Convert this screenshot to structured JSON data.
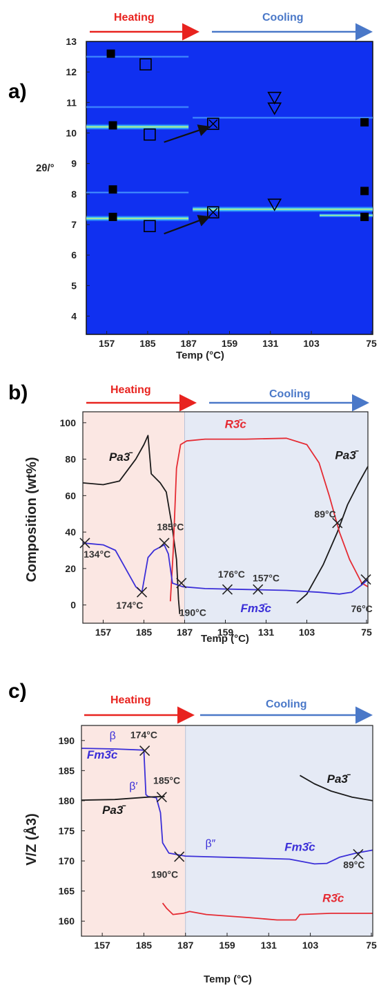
{
  "colors": {
    "heating": "#e8231f",
    "cooling": "#4a78c8",
    "heatmap_bg": "#1030f0",
    "fm3c": "#3b2fd8",
    "r3c": "#e52b33",
    "pa3": "#1a1a1a",
    "heating_fill": "#fbe7e3",
    "cooling_fill": "#e5eaf5"
  },
  "chart_data": [
    {
      "panel": "a)",
      "type": "heatmap",
      "ylabel": "2θ/°",
      "xlabel": "Temp (°C)",
      "heating_label": "Heating",
      "cooling_label": "Cooling",
      "x_ticks": [
        "157",
        "185",
        "187",
        "159",
        "131",
        "103",
        "75"
      ],
      "y_ticks": [
        "4",
        "5",
        "6",
        "7",
        "8",
        "9",
        "10",
        "11",
        "12",
        "13"
      ],
      "ylim": [
        3.4,
        13.0
      ],
      "x_domain": [
        0,
        7
      ],
      "bands": [
        {
          "y": 7.2,
          "x0": 0,
          "x1": 2.5,
          "strength": 3
        },
        {
          "y": 7.5,
          "x0": 2.6,
          "x1": 7,
          "strength": 3
        },
        {
          "y": 7.3,
          "x0": 5.7,
          "x1": 7,
          "strength": 2
        },
        {
          "y": 8.05,
          "x0": 0,
          "x1": 2.5,
          "strength": 1
        },
        {
          "y": 10.2,
          "x0": 0,
          "x1": 2.5,
          "strength": 3
        },
        {
          "y": 10.5,
          "x0": 2.6,
          "x1": 7,
          "strength": 1
        },
        {
          "y": 10.85,
          "x0": 0,
          "x1": 2.5,
          "strength": 1
        },
        {
          "y": 12.5,
          "x0": 0,
          "x1": 2.5,
          "strength": 1
        }
      ],
      "markers": [
        {
          "shape": "filled-square",
          "x": 0.65,
          "y": 7.25
        },
        {
          "shape": "filled-square",
          "x": 0.65,
          "y": 8.15
        },
        {
          "shape": "filled-square",
          "x": 0.65,
          "y": 10.25
        },
        {
          "shape": "filled-square",
          "x": 0.6,
          "y": 12.6
        },
        {
          "shape": "open-square",
          "x": 1.55,
          "y": 6.95
        },
        {
          "shape": "open-square",
          "x": 1.55,
          "y": 9.95
        },
        {
          "shape": "open-square",
          "x": 1.45,
          "y": 12.25
        },
        {
          "shape": "crossed-square",
          "x": 3.1,
          "y": 7.4
        },
        {
          "shape": "crossed-square",
          "x": 3.1,
          "y": 10.3
        },
        {
          "shape": "down-triangle",
          "x": 4.6,
          "y": 7.65
        },
        {
          "shape": "down-triangle",
          "x": 4.6,
          "y": 10.8
        },
        {
          "shape": "down-triangle",
          "x": 4.6,
          "y": 11.15
        },
        {
          "shape": "filled-square",
          "x": 6.8,
          "y": 7.25
        },
        {
          "shape": "filled-square",
          "x": 6.8,
          "y": 8.1
        },
        {
          "shape": "filled-square",
          "x": 6.8,
          "y": 10.35
        }
      ],
      "arrows": [
        {
          "x0": 1.9,
          "y0": 6.7,
          "x1": 3.0,
          "y1": 7.25
        },
        {
          "x0": 1.9,
          "y0": 9.7,
          "x1": 3.0,
          "y1": 10.2
        }
      ]
    },
    {
      "panel": "b)",
      "type": "line",
      "ylabel": "Composition (wt%)",
      "xlabel": "Temp (°C)",
      "heating_label": "Heating",
      "cooling_label": "Cooling",
      "x_ticks": [
        "157",
        "185",
        "187",
        "159",
        "131",
        "103",
        "75"
      ],
      "y_ticks": [
        "0",
        "20",
        "40",
        "60",
        "80",
        "100"
      ],
      "ylim": [
        -10,
        106
      ],
      "x_domain": [
        0,
        7
      ],
      "heating_region": [
        0,
        2.5
      ],
      "series": [
        {
          "name": "Pa3̄",
          "color_key": "pa3",
          "points": [
            [
              0,
              67
            ],
            [
              0.5,
              66
            ],
            [
              0.9,
              68
            ],
            [
              1.3,
              80
            ],
            [
              1.5,
              88
            ],
            [
              1.6,
              93
            ],
            [
              1.68,
              72
            ],
            [
              1.9,
              67
            ],
            [
              2.05,
              62
            ],
            [
              2.2,
              42
            ],
            [
              2.3,
              25
            ],
            [
              2.35,
              3
            ],
            [
              2.38,
              -5
            ]
          ]
        },
        {
          "name": "Pa3̄",
          "color_key": "pa3",
          "points": [
            [
              5.25,
              1
            ],
            [
              5.5,
              6
            ],
            [
              5.9,
              22
            ],
            [
              6.25,
              40
            ],
            [
              6.5,
              55
            ],
            [
              6.75,
              66
            ],
            [
              7.0,
              76
            ]
          ]
        },
        {
          "name": "R3̄c",
          "color_key": "r3c",
          "points": [
            [
              2.15,
              2
            ],
            [
              2.22,
              30
            ],
            [
              2.3,
              75
            ],
            [
              2.4,
              88
            ],
            [
              2.55,
              90
            ],
            [
              3.0,
              91
            ],
            [
              4.0,
              91
            ],
            [
              5.0,
              91.5
            ],
            [
              5.5,
              88
            ],
            [
              5.8,
              78
            ],
            [
              6.05,
              60
            ],
            [
              6.3,
              40
            ],
            [
              6.55,
              25
            ],
            [
              6.85,
              12
            ],
            [
              7.0,
              10
            ]
          ]
        },
        {
          "name": "Fm3̄c",
          "color_key": "fm3c",
          "points": [
            [
              0,
              34
            ],
            [
              0.5,
              33
            ],
            [
              0.8,
              30
            ],
            [
              1.0,
              22
            ],
            [
              1.3,
              10
            ],
            [
              1.45,
              7
            ],
            [
              1.6,
              26
            ],
            [
              1.75,
              30
            ],
            [
              2.0,
              33
            ],
            [
              2.1,
              28
            ],
            [
              2.2,
              12
            ],
            [
              2.45,
              10
            ],
            [
              3.0,
              9
            ],
            [
              4.0,
              8.5
            ],
            [
              5.0,
              8
            ],
            [
              5.8,
              7
            ],
            [
              6.3,
              6
            ],
            [
              6.6,
              7
            ],
            [
              6.85,
              11
            ],
            [
              7.0,
              14
            ]
          ]
        }
      ],
      "markers": [
        {
          "x": 0.05,
          "y": 34
        },
        {
          "x": 1.45,
          "y": 7
        },
        {
          "x": 2.0,
          "y": 34
        },
        {
          "x": 2.42,
          "y": 12
        },
        {
          "x": 3.55,
          "y": 8.5
        },
        {
          "x": 4.3,
          "y": 8.5
        },
        {
          "x": 6.25,
          "y": 45
        },
        {
          "x": 6.95,
          "y": 14
        }
      ],
      "annotations": [
        {
          "text": "134°C",
          "x": 0.35,
          "y": 26
        },
        {
          "text": "174°C",
          "x": 1.15,
          "y": -2
        },
        {
          "text": "185°C",
          "x": 2.15,
          "y": 41
        },
        {
          "text": "190°C",
          "x": 2.7,
          "y": -6
        },
        {
          "text": "176°C",
          "x": 3.65,
          "y": 15
        },
        {
          "text": "157°C",
          "x": 4.5,
          "y": 13
        },
        {
          "text": "89°C",
          "x": 5.95,
          "y": 48
        },
        {
          "text": "76°C",
          "x": 6.85,
          "y": -4
        }
      ],
      "phase_labels": [
        {
          "text": "Pa3̄",
          "color_key": "pa3",
          "x": 0.9,
          "y": 79
        },
        {
          "text": "R3̄c",
          "color_key": "r3c",
          "x": 3.75,
          "y": 97
        },
        {
          "text": "Pa3̄",
          "color_key": "pa3",
          "x": 6.45,
          "y": 80
        },
        {
          "text": "Fm3̄c",
          "color_key": "fm3c",
          "x": 4.25,
          "y": -4
        }
      ]
    },
    {
      "panel": "c)",
      "type": "line",
      "ylabel": "V/Z (Å3)",
      "xlabel": "Temp (°C)",
      "heating_label": "Heating",
      "cooling_label": "Cooling",
      "x_ticks": [
        "157",
        "185",
        "187",
        "159",
        "131",
        "103",
        "75"
      ],
      "y_ticks": [
        "160",
        "165",
        "170",
        "175",
        "180",
        "185",
        "190"
      ],
      "ylim": [
        157.5,
        192.5
      ],
      "x_domain": [
        0,
        7
      ],
      "heating_region": [
        0,
        2.5
      ],
      "series": [
        {
          "name": "Fm3̄c",
          "color_key": "fm3c",
          "points": [
            [
              0,
              188.7
            ],
            [
              0.8,
              188.6
            ],
            [
              1.5,
              188.4
            ],
            [
              1.55,
              181
            ],
            [
              1.6,
              180.7
            ],
            [
              1.8,
              180.5
            ],
            [
              1.9,
              178
            ],
            [
              1.95,
              173
            ],
            [
              2.1,
              171.3
            ],
            [
              2.5,
              170.8
            ],
            [
              3.0,
              170.7
            ],
            [
              4.0,
              170.5
            ],
            [
              5.0,
              170.3
            ],
            [
              5.6,
              169.5
            ],
            [
              5.9,
              169.6
            ],
            [
              6.2,
              170.6
            ],
            [
              6.6,
              171.3
            ],
            [
              7.0,
              171.8
            ]
          ]
        },
        {
          "name": "Pa3̄",
          "color_key": "pa3",
          "points": [
            [
              0,
              180.1
            ],
            [
              0.8,
              180.2
            ],
            [
              1.6,
              180.6
            ],
            [
              2.0,
              180.7
            ]
          ]
        },
        {
          "name": "Pa3̄",
          "color_key": "pa3",
          "points": [
            [
              5.25,
              184.2
            ],
            [
              5.6,
              182.8
            ],
            [
              6.0,
              181.6
            ],
            [
              6.5,
              180.6
            ],
            [
              7.0,
              180.0
            ]
          ]
        },
        {
          "name": "R3̄c",
          "color_key": "r3c",
          "points": [
            [
              1.95,
              163.0
            ],
            [
              2.05,
              162.1
            ],
            [
              2.2,
              161.1
            ],
            [
              2.45,
              161.3
            ],
            [
              2.6,
              161.6
            ],
            [
              3.0,
              161.1
            ],
            [
              4.0,
              160.6
            ],
            [
              4.7,
              160.2
            ],
            [
              5.15,
              160.2
            ],
            [
              5.25,
              161.1
            ],
            [
              6.0,
              161.3
            ],
            [
              7.0,
              161.3
            ]
          ]
        }
      ],
      "markers": [
        {
          "x": 1.52,
          "y": 188.3
        },
        {
          "x": 1.93,
          "y": 180.6
        },
        {
          "x": 2.35,
          "y": 170.7
        },
        {
          "x": 6.65,
          "y": 171.1
        }
      ],
      "annotations": [
        {
          "text": "174°C",
          "x": 1.5,
          "y": 190.4
        },
        {
          "text": "185°C",
          "x": 2.05,
          "y": 182.8
        },
        {
          "text": "190°C",
          "x": 2.0,
          "y": 167.2
        },
        {
          "text": "89°C",
          "x": 6.55,
          "y": 168.8
        }
      ],
      "greek_labels": [
        {
          "text": "β",
          "x": 0.75,
          "y": 190.2
        },
        {
          "text": "β′",
          "x": 1.25,
          "y": 181.8
        },
        {
          "text": "β″",
          "x": 3.1,
          "y": 172.3
        }
      ],
      "phase_labels": [
        {
          "text": "Fm3̄c",
          "color_key": "fm3c",
          "x": 0.5,
          "y": 187.0
        },
        {
          "text": "Pa3̄",
          "color_key": "pa3",
          "x": 0.75,
          "y": 177.8
        },
        {
          "text": "Pa3̄",
          "color_key": "pa3",
          "x": 6.15,
          "y": 183.0
        },
        {
          "text": "Fm3̄c",
          "color_key": "fm3c",
          "x": 5.25,
          "y": 171.7
        },
        {
          "text": "R3̄c",
          "color_key": "r3c",
          "x": 6.05,
          "y": 163.2
        }
      ]
    }
  ]
}
